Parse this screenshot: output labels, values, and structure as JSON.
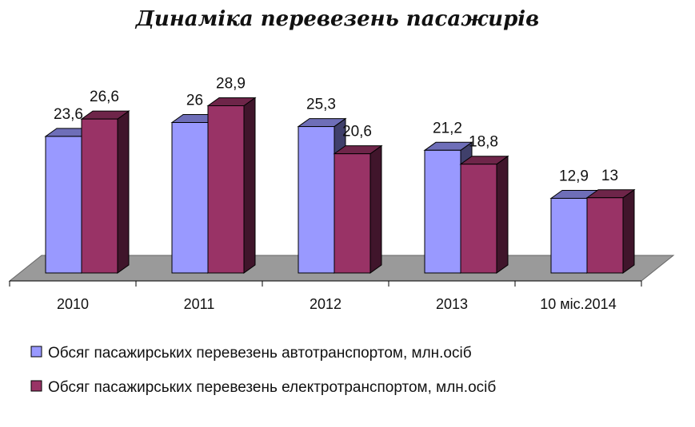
{
  "chart_data": {
    "type": "bar",
    "title": "Динаміка перевезень пасажирів",
    "categories": [
      "2010",
      "2011",
      "2012",
      "2013",
      "10 міс.2014"
    ],
    "series": [
      {
        "name": "Обсяг пасажирських перевезень автотранспортом, млн.осіб",
        "values": [
          23.6,
          26,
          25.3,
          21.2,
          12.9
        ],
        "labels": [
          "23,6",
          "26",
          "25,3",
          "21,2",
          "12,9"
        ],
        "color": "#9999ff"
      },
      {
        "name": "Обсяг пасажирських перевезень електротранспортом, млн.осіб",
        "values": [
          26.6,
          28.9,
          20.6,
          18.8,
          13
        ],
        "labels": [
          "26,6",
          "28,9",
          "20,6",
          "18,8",
          "13"
        ],
        "color": "#993366"
      }
    ],
    "xlabel": "",
    "ylabel": "",
    "ylim": [
      0,
      30
    ],
    "grid": false,
    "legend": "bottom",
    "style": "3d-clustered-column"
  }
}
